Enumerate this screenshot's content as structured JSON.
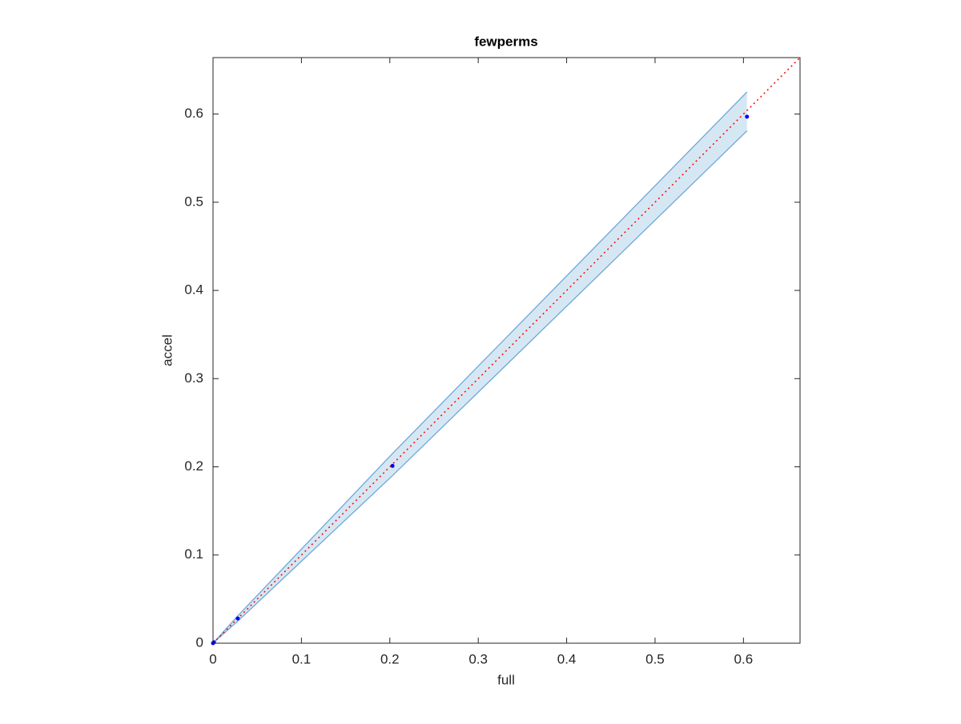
{
  "chart_data": {
    "type": "scatter",
    "title": "fewperms",
    "xlabel": "full",
    "ylabel": "accel",
    "xlim": [
      0,
      0.664
    ],
    "ylim": [
      0,
      0.664
    ],
    "xticks": [
      0,
      0.1,
      0.2,
      0.3,
      0.4,
      0.5,
      0.6
    ],
    "yticks": [
      0,
      0.1,
      0.2,
      0.3,
      0.4,
      0.5,
      0.6
    ],
    "x": [
      0,
      0.001,
      0.028,
      0.203,
      0.604
    ],
    "band": {
      "color": "#6fa8d6",
      "fill": "#d6e7f4",
      "lower": [
        0,
        0.001,
        0.025,
        0.19,
        0.581
      ],
      "upper": [
        0,
        0.001,
        0.031,
        0.215,
        0.625
      ]
    },
    "series": [
      {
        "color": "#0000ff",
        "values": [
          0,
          0.001,
          0.028,
          0.201,
          0.597
        ]
      }
    ],
    "reference_line": {
      "color": "#ff0000",
      "x": [
        0,
        0.664
      ],
      "values": [
        0,
        0.664
      ]
    }
  }
}
